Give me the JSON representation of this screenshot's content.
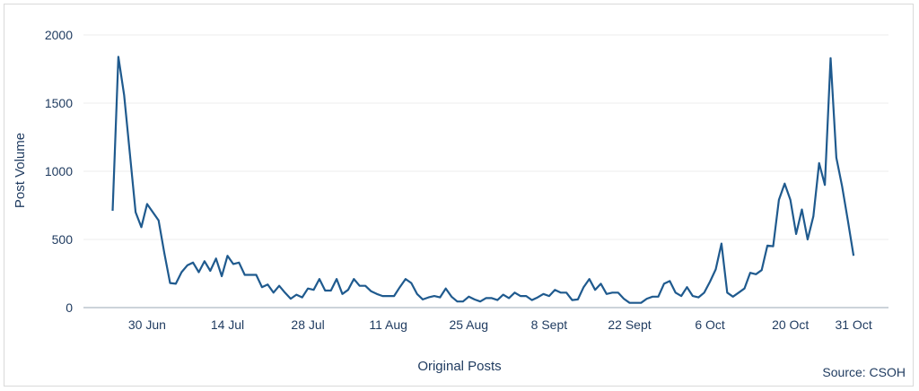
{
  "chart_data": {
    "type": "line",
    "title": "",
    "xlabel": "Original Posts",
    "ylabel": "Post Volume",
    "source": "Source: CSOH",
    "ylim": [
      0,
      2000
    ],
    "yticks": [
      0,
      500,
      1000,
      1500,
      2000
    ],
    "xticks": [
      {
        "label": "30 Jun",
        "index": 6
      },
      {
        "label": "14 Jul",
        "index": 20
      },
      {
        "label": "28 Jul",
        "index": 34
      },
      {
        "label": "11 Aug",
        "index": 48
      },
      {
        "label": "25 Aug",
        "index": 62
      },
      {
        "label": "8 Sept",
        "index": 76
      },
      {
        "label": "22 Sept",
        "index": 90
      },
      {
        "label": "6 Oct",
        "index": 104
      },
      {
        "label": "20 Oct",
        "index": 118
      },
      {
        "label": "31 Oct",
        "index": 129
      }
    ],
    "grid": true,
    "color": "#1f5a8e",
    "series": [
      {
        "values": [
          710,
          1840,
          1560,
          1130,
          700,
          590,
          760,
          700,
          640,
          400,
          180,
          175,
          260,
          310,
          330,
          260,
          340,
          270,
          360,
          230,
          380,
          320,
          330,
          240,
          240,
          240,
          150,
          170,
          110,
          160,
          110,
          65,
          95,
          75,
          140,
          130,
          210,
          125,
          125,
          210,
          100,
          130,
          210,
          160,
          160,
          120,
          100,
          85,
          85,
          85,
          150,
          210,
          180,
          100,
          60,
          75,
          85,
          75,
          140,
          80,
          45,
          45,
          80,
          60,
          45,
          70,
          70,
          55,
          95,
          70,
          110,
          85,
          85,
          55,
          75,
          100,
          85,
          130,
          110,
          110,
          55,
          60,
          150,
          210,
          130,
          175,
          100,
          110,
          110,
          65,
          35,
          35,
          35,
          65,
          80,
          80,
          175,
          195,
          110,
          85,
          150,
          85,
          75,
          110,
          190,
          280,
          470,
          110,
          80,
          110,
          140,
          255,
          245,
          275,
          455,
          450,
          790,
          910,
          790,
          540,
          720,
          500,
          670,
          1060,
          900,
          1830,
          1100,
          890,
          640,
          380
        ]
      }
    ]
  }
}
